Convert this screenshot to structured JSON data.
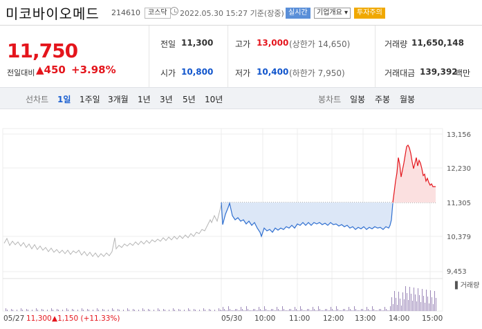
{
  "header": {
    "title": "미코바이오메드",
    "code": "214610",
    "market": "코스닥",
    "datetime": "2022.05.30 15:27 기준(장중)",
    "badges": {
      "live": "실시간",
      "info": "기업개요 ▾",
      "warning": "투자주의"
    }
  },
  "quote": {
    "price": "11,750",
    "change_label": "전일대비",
    "change": "▲450",
    "change_pct": "+3.98%"
  },
  "stats": {
    "prev_label": "전일",
    "prev": "11,300",
    "high_label": "고가",
    "high": "13,000",
    "high_note": "(상한가 14,650)",
    "volume_label": "거래량",
    "volume": "11,650,148",
    "open_label": "시가",
    "open": "10,800",
    "low_label": "저가",
    "low": "10,400",
    "low_note": "(하한가 7,950)",
    "amount_label": "거래대금",
    "amount": "139,392",
    "amount_unit": "백만"
  },
  "tabs": {
    "line_label": "선차트",
    "line": [
      "1일",
      "1주일",
      "3개월",
      "1년",
      "3년",
      "5년",
      "10년"
    ],
    "candle_label": "봉차트",
    "candle": [
      "일봉",
      "주봉",
      "월봉"
    ]
  },
  "chart_data": {
    "type": "line",
    "ylim": [
      9453,
      13156
    ],
    "y_ticks": [
      "13,156",
      "12,230",
      "11,305",
      "10,379",
      "9,453"
    ],
    "x_ticks": [
      "05/27",
      "05/30",
      "10:00",
      "11:00",
      "12:00",
      "13:00",
      "14:00",
      "15:00"
    ],
    "reference_price": 11300,
    "footer_text": "05/27 11,300",
    "footer_change": "▲1,150 (+11.33%)",
    "volume_legend": "▌거래량",
    "colors": {
      "prev_day": "#b5b5b5",
      "below": "#2f6fd0",
      "above": "#e4151c",
      "volume": "#9b87b8"
    }
  }
}
